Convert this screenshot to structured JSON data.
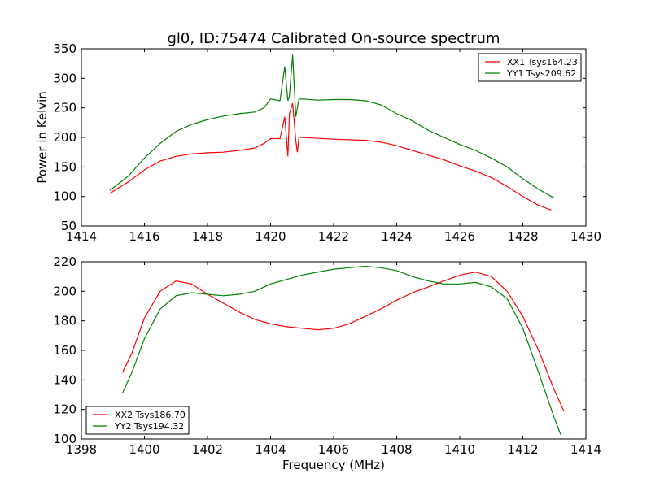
{
  "chart_data": [
    {
      "type": "line",
      "title": "gl0, ID:75474 Calibrated On-source spectrum",
      "xlabel": "",
      "ylabel": "Power in Kelvin",
      "xlim": [
        1414,
        1430
      ],
      "ylim": [
        50,
        350
      ],
      "xticks": [
        1414,
        1416,
        1418,
        1420,
        1422,
        1424,
        1426,
        1428,
        1430
      ],
      "yticks": [
        50,
        100,
        150,
        200,
        250,
        300,
        350
      ],
      "legend_position": "top-right",
      "series": [
        {
          "name": "XX1 Tsys164.23",
          "color": "#ff0000",
          "x": [
            1414.9,
            1415.5,
            1416,
            1416.5,
            1417,
            1417.5,
            1418,
            1418.5,
            1419,
            1419.5,
            1419.8,
            1420,
            1420.3,
            1420.45,
            1420.55,
            1420.6,
            1420.7,
            1420.8,
            1420.85,
            1420.9,
            1421,
            1422,
            1423,
            1423.5,
            1424,
            1424.5,
            1425,
            1425.5,
            1426,
            1426.5,
            1427,
            1427.5,
            1428,
            1428.5,
            1428.9
          ],
          "y": [
            105,
            125,
            145,
            160,
            168,
            172,
            174,
            175,
            178,
            182,
            190,
            198,
            198,
            235,
            168,
            240,
            258,
            195,
            175,
            200,
            200,
            197,
            195,
            192,
            186,
            178,
            170,
            162,
            152,
            143,
            132,
            117,
            100,
            85,
            77
          ]
        },
        {
          "name": "YY1 Tsys209.62",
          "color": "#008000",
          "x": [
            1414.9,
            1415.5,
            1416,
            1416.5,
            1417,
            1417.5,
            1418,
            1418.5,
            1419,
            1419.5,
            1419.8,
            1420,
            1420.3,
            1420.45,
            1420.55,
            1420.6,
            1420.7,
            1420.8,
            1420.9,
            1421,
            1421.5,
            1422,
            1422.5,
            1423,
            1423.5,
            1424,
            1424.5,
            1425,
            1425.5,
            1426,
            1426.5,
            1427,
            1427.5,
            1428,
            1428.5,
            1429
          ],
          "y": [
            110,
            135,
            165,
            190,
            210,
            222,
            230,
            236,
            240,
            243,
            250,
            265,
            262,
            320,
            262,
            270,
            340,
            235,
            265,
            265,
            263,
            264,
            264,
            262,
            255,
            240,
            228,
            212,
            200,
            188,
            178,
            165,
            150,
            130,
            112,
            97
          ]
        }
      ]
    },
    {
      "type": "line",
      "title": "",
      "xlabel": "Frequency (MHz)",
      "ylabel": "",
      "xlim": [
        1398,
        1414
      ],
      "ylim": [
        100,
        220
      ],
      "xticks": [
        1398,
        1400,
        1402,
        1404,
        1406,
        1408,
        1410,
        1412,
        1414
      ],
      "yticks": [
        100,
        120,
        140,
        160,
        180,
        200,
        220
      ],
      "legend_position": "bottom-left",
      "series": [
        {
          "name": "XX2 Tsys186.70",
          "color": "#ff0000",
          "x": [
            1399.3,
            1399.6,
            1400,
            1400.5,
            1401,
            1401.5,
            1402,
            1402.5,
            1403,
            1403.5,
            1404,
            1404.5,
            1405,
            1405.5,
            1406,
            1406.5,
            1407,
            1407.5,
            1408,
            1408.5,
            1409,
            1409.5,
            1410,
            1410.5,
            1411,
            1411.5,
            1412,
            1412.5,
            1413,
            1413.3
          ],
          "y": [
            145,
            158,
            182,
            200,
            207,
            205,
            198,
            192,
            186,
            181,
            178,
            176,
            175,
            174,
            175,
            178,
            183,
            188,
            194,
            199,
            203,
            207,
            211,
            213,
            210,
            200,
            183,
            160,
            133,
            119
          ]
        },
        {
          "name": "YY2 Tsys194.32",
          "color": "#008000",
          "x": [
            1399.3,
            1399.6,
            1400,
            1400.5,
            1401,
            1401.5,
            1402,
            1402.5,
            1403,
            1403.5,
            1404,
            1404.5,
            1405,
            1405.5,
            1406,
            1406.5,
            1407,
            1407.5,
            1408,
            1408.5,
            1409,
            1409.5,
            1410,
            1410.5,
            1411,
            1411.5,
            1412,
            1412.5,
            1413,
            1413.2
          ],
          "y": [
            131,
            145,
            168,
            188,
            197,
            199,
            198,
            197,
            198,
            200,
            205,
            208,
            211,
            213,
            215,
            216,
            217,
            216,
            214,
            210,
            207,
            205,
            205,
            206,
            203,
            195,
            175,
            145,
            114,
            103
          ]
        }
      ]
    }
  ]
}
